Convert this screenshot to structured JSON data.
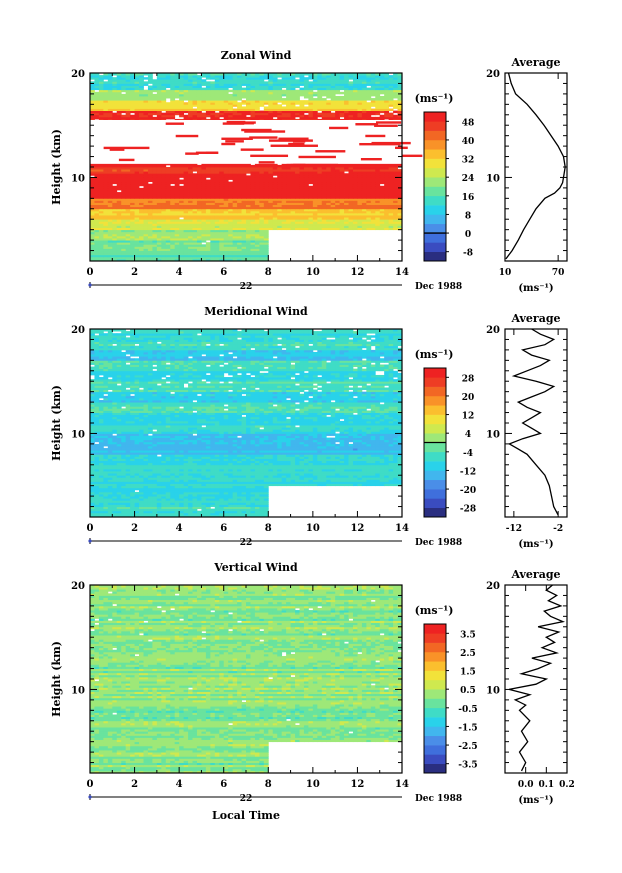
{
  "chart_data": [
    {
      "type": "heatmap",
      "title": "Zonal Wind",
      "ylabel": "Height (km)",
      "y_tick_labels": [
        "20",
        "10"
      ],
      "x_tick_labels": [
        "0",
        "2",
        "4",
        "6",
        "8",
        "10",
        "12",
        "14"
      ],
      "date_day": "22",
      "date_label": "Dec 1988",
      "xlim": [
        0,
        14
      ],
      "ylim": [
        2,
        20
      ],
      "missing_data": "white block for time > 8 h below about 5 km",
      "colorbar": {
        "unit": "(ms⁻¹)",
        "ticks": [
          "48",
          "40",
          "32",
          "24",
          "16",
          "8",
          "0",
          "-8"
        ],
        "levels": [
          -12,
          -8,
          -4,
          0,
          4,
          8,
          12,
          16,
          20,
          24,
          28,
          32,
          36,
          40,
          44,
          48,
          52
        ],
        "colors": [
          "#2a2e80",
          "#3a4cc0",
          "#3f6fdc",
          "#4a8ee8",
          "#41b6ee",
          "#29d2ea",
          "#3fdcc6",
          "#69e39e",
          "#9ee878",
          "#cfe94f",
          "#f2e23a",
          "#fbbf2e",
          "#f99228",
          "#f26724",
          "#ee3d24",
          "#ee2222"
        ]
      },
      "profile_bands": [
        {
          "z": [
            2,
            3
          ],
          "v": 16
        },
        {
          "z": [
            3,
            4
          ],
          "v": 18
        },
        {
          "z": [
            4,
            5
          ],
          "v": 22
        },
        {
          "z": [
            5,
            6
          ],
          "v": 27
        },
        {
          "z": [
            6,
            7
          ],
          "v": 33
        },
        {
          "z": [
            7,
            8
          ],
          "v": 40
        },
        {
          "z": [
            8,
            10.5
          ],
          "v": 56
        },
        {
          "z": [
            10.5,
            11
          ],
          "v": 46
        },
        {
          "z": [
            11,
            13.5
          ],
          "v": 60
        },
        {
          "z": [
            13.5,
            14.5
          ],
          "v": 56
        },
        {
          "z": [
            14.5,
            16.5
          ],
          "v": 50
        },
        {
          "z": [
            16.5,
            17.5
          ],
          "v": 32
        },
        {
          "z": [
            17.5,
            18.5
          ],
          "v": 22
        },
        {
          "z": [
            18.5,
            20
          ],
          "v": 14
        }
      ],
      "average_profile": {
        "title": "Average",
        "xlabel": "(ms⁻¹)",
        "x_tick_labels": [
          "10",
          "70"
        ],
        "y_tick_labels": [
          "20",
          "10"
        ],
        "xlim": [
          10,
          80
        ],
        "z": [
          2.2,
          3,
          4,
          5,
          6,
          7,
          8,
          8.5,
          9,
          9.5,
          10,
          11,
          12,
          13,
          14,
          15,
          16,
          17,
          18,
          19,
          20
        ],
        "u": [
          11,
          18,
          25,
          31,
          38,
          45,
          55,
          66,
          72,
          75,
          76,
          78,
          76,
          70,
          62,
          54,
          45,
          35,
          22,
          17,
          14
        ]
      }
    },
    {
      "type": "heatmap",
      "title": "Meridional Wind",
      "ylabel": "Height (km)",
      "y_tick_labels": [
        "20",
        "10"
      ],
      "x_tick_labels": [
        "0",
        "2",
        "4",
        "6",
        "8",
        "10",
        "12",
        "14"
      ],
      "date_day": "22",
      "date_label": "Dec 1988",
      "xlim": [
        0,
        14
      ],
      "ylim": [
        2,
        20
      ],
      "missing_data": "white block for time > 8 h below about 5 km",
      "contour": 0,
      "colorbar": {
        "unit": "(ms⁻¹)",
        "ticks": [
          "28",
          "20",
          "12",
          "4",
          "-4",
          "-12",
          "-20",
          "-28"
        ],
        "levels": [
          -32,
          -28,
          -24,
          -20,
          -16,
          -12,
          -8,
          -4,
          0,
          4,
          8,
          12,
          16,
          20,
          24,
          28,
          32
        ],
        "colors": [
          "#2a2e80",
          "#3a4cc0",
          "#3f6fdc",
          "#4a8ee8",
          "#41b6ee",
          "#29d2ea",
          "#3fdcc6",
          "#69e39e",
          "#9ee878",
          "#cfe94f",
          "#f2e23a",
          "#fbbf2e",
          "#f99228",
          "#f26724",
          "#ee3d24",
          "#ee2222"
        ]
      },
      "profile_bands": [
        {
          "z": [
            2,
            4
          ],
          "v": -6
        },
        {
          "z": [
            4,
            6
          ],
          "v": -9
        },
        {
          "z": [
            6,
            8
          ],
          "v": -8
        },
        {
          "z": [
            8,
            10
          ],
          "v": -12
        },
        {
          "z": [
            10,
            11
          ],
          "v": -7
        },
        {
          "z": [
            11,
            12
          ],
          "v": -10
        },
        {
          "z": [
            12,
            13
          ],
          "v": -5
        },
        {
          "z": [
            13,
            14
          ],
          "v": -10
        },
        {
          "z": [
            14,
            15
          ],
          "v": -4
        },
        {
          "z": [
            15,
            16
          ],
          "v": -9
        },
        {
          "z": [
            16,
            17
          ],
          "v": -5
        },
        {
          "z": [
            17,
            18
          ],
          "v": -11
        },
        {
          "z": [
            18,
            19
          ],
          "v": -6
        },
        {
          "z": [
            19,
            20
          ],
          "v": -8
        }
      ],
      "average_profile": {
        "title": "Average",
        "xlabel": "(ms⁻¹)",
        "x_tick_labels": [
          "-12",
          "-2"
        ],
        "y_tick_labels": [
          "20",
          "10"
        ],
        "xlim": [
          -14,
          0
        ],
        "z": [
          2.2,
          3,
          4,
          5,
          6,
          7,
          8,
          8.5,
          9,
          9.5,
          10,
          10.5,
          11,
          11.5,
          12,
          12.5,
          13,
          13.5,
          14,
          14.5,
          15,
          15.5,
          16,
          16.5,
          17,
          17.5,
          18,
          18.5,
          19,
          19.5,
          20
        ],
        "v": [
          -2,
          -3,
          -3.5,
          -4,
          -5,
          -7,
          -9,
          -11,
          -13,
          -10,
          -6,
          -8,
          -10,
          -8,
          -6,
          -9,
          -11,
          -8,
          -5,
          -3,
          -7,
          -12,
          -9,
          -6,
          -4,
          -8,
          -10,
          -5,
          -3,
          -6,
          -8
        ]
      }
    },
    {
      "type": "heatmap",
      "title": "Vertical Wind",
      "ylabel": "Height (km)",
      "xlabel": "Local Time",
      "y_tick_labels": [
        "20",
        "10"
      ],
      "x_tick_labels": [
        "0",
        "2",
        "4",
        "6",
        "8",
        "10",
        "12",
        "14"
      ],
      "date_day": "22",
      "date_label": "Dec 1988",
      "xlim": [
        0,
        14
      ],
      "ylim": [
        2,
        20
      ],
      "missing_data": "white block for time > 8 h below about 5 km",
      "colorbar": {
        "unit": "(ms⁻¹)",
        "ticks": [
          "3.5",
          "2.5",
          "1.5",
          "0.5",
          "-0.5",
          "-1.5",
          "-2.5",
          "-3.5"
        ],
        "levels": [
          -4,
          -3.5,
          -3,
          -2.5,
          -2,
          -1.5,
          -1,
          -0.5,
          0,
          0.5,
          1,
          1.5,
          2,
          2.5,
          3,
          3.5,
          4
        ],
        "colors": [
          "#2a2e80",
          "#3a4cc0",
          "#3f6fdc",
          "#4a8ee8",
          "#41b6ee",
          "#29d2ea",
          "#3fdcc6",
          "#69e39e",
          "#9ee878",
          "#cfe94f",
          "#f2e23a",
          "#fbbf2e",
          "#f99228",
          "#f26724",
          "#ee3d24",
          "#ee2222"
        ]
      },
      "profile_bands": [
        {
          "z": [
            2,
            20
          ],
          "v": 0.05
        }
      ],
      "average_profile": {
        "title": "Average",
        "xlabel": "(ms⁻¹)",
        "x_tick_labels": [
          "0.0",
          "0.1",
          "0.2"
        ],
        "x_tick_values": [
          0.0,
          0.1,
          0.2
        ],
        "y_tick_labels": [
          "20",
          "10"
        ],
        "xlim": [
          -0.1,
          0.2
        ],
        "z": [
          2.2,
          3,
          4,
          5,
          6,
          7,
          8,
          8.5,
          9,
          9.5,
          10,
          10.5,
          11,
          11.5,
          12,
          12.5,
          13,
          13.5,
          14,
          14.5,
          15,
          15.5,
          16,
          16.5,
          17,
          17.5,
          18,
          18.5,
          19,
          19.5,
          20
        ],
        "w": [
          -0.02,
          0.0,
          -0.03,
          0.01,
          -0.02,
          0.02,
          -0.03,
          0.0,
          -0.05,
          0.02,
          -0.08,
          0.05,
          0.1,
          -0.02,
          0.06,
          0.12,
          0.03,
          0.15,
          0.08,
          0.14,
          0.1,
          0.16,
          0.06,
          0.18,
          0.12,
          0.09,
          0.17,
          0.11,
          0.15,
          0.1,
          0.13
        ]
      }
    }
  ]
}
